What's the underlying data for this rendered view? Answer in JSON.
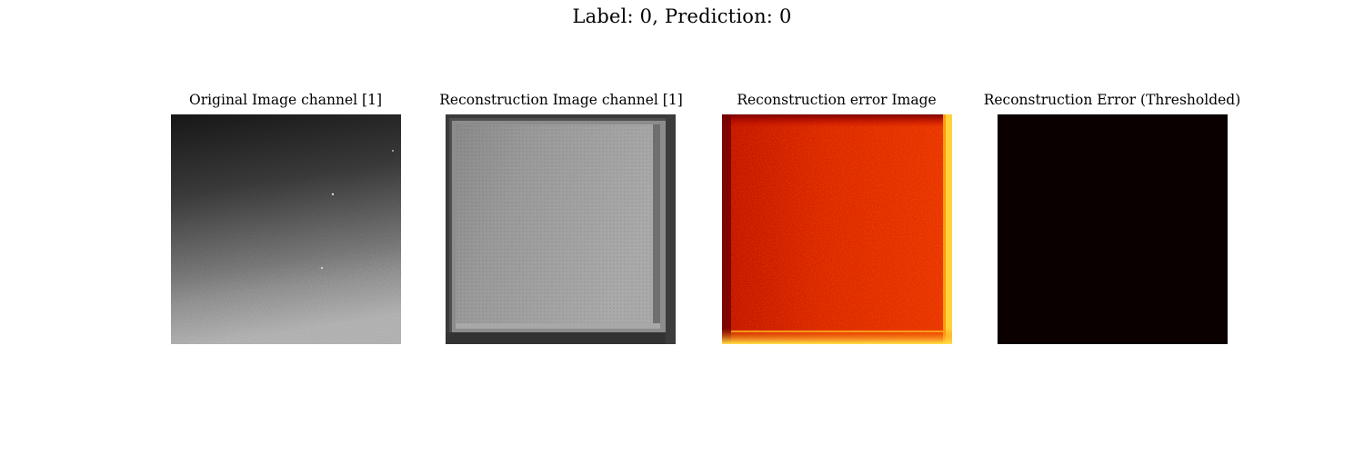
{
  "figure": {
    "suptitle": "Label: 0, Prediction: 0"
  },
  "panels": [
    {
      "title": "Original Image channel [1]",
      "colormap": "gray"
    },
    {
      "title": "Reconstruction Image channel [1]",
      "colormap": "gray"
    },
    {
      "title": "Reconstruction error Image",
      "colormap": "hot"
    },
    {
      "title": "Reconstruction Error (Thresholded)",
      "colormap": "hot"
    }
  ],
  "colors": {
    "background": "#ffffff",
    "thresholded_fill": "#0b0000"
  }
}
